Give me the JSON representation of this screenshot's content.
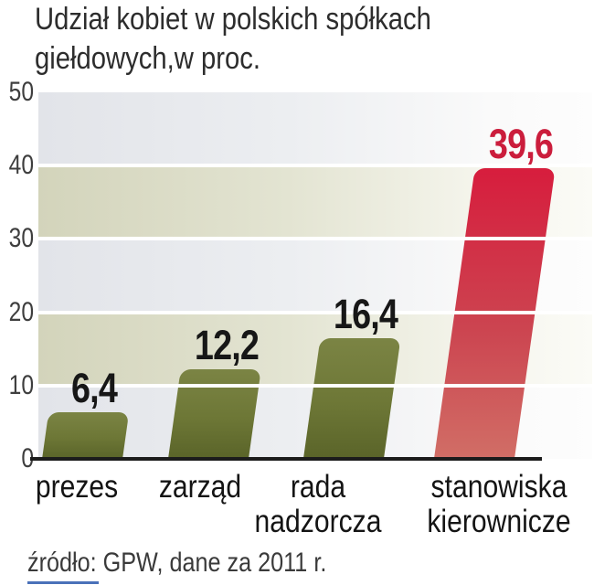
{
  "title_lines": [
    "Udział kobiet w polskich spółkach",
    "giełdowych,w proc."
  ],
  "source": "źródło: GPW, dane za 2011 r.",
  "colors": {
    "band_gray": "#e2e4e9",
    "band_khaki": "#d3d4bb",
    "bar_green_top": "#7b8444",
    "bar_green_bottom": "#5a6429",
    "bar_red_top": "#d71d3d",
    "bar_red_bottom": "#d16e66",
    "value_black": "#171717",
    "value_red": "#cb1d3c",
    "axis_line": "#1c1c1c",
    "bottom_rule_blue": "#4a71b9"
  },
  "chart_data": {
    "type": "bar",
    "title": "Udział kobiet w polskich spółkach giełdowych,w proc.",
    "categories": [
      "prezes",
      "zarząd",
      "rada nadzorcza",
      "stanowiska kierownicze"
    ],
    "category_lines": [
      [
        "prezes"
      ],
      [
        "zarząd"
      ],
      [
        "rada",
        "nadzorcza"
      ],
      [
        "stanowiska",
        "kierownicze"
      ]
    ],
    "values": [
      6.4,
      12.2,
      16.4,
      39.6
    ],
    "value_labels": [
      "6,4",
      "12,2",
      "16,4",
      "39,6"
    ],
    "bar_colors": [
      "green",
      "green",
      "green",
      "red"
    ],
    "xlabel": "",
    "ylabel": "",
    "ylim": [
      0,
      50
    ],
    "yticks": [
      0,
      10,
      20,
      30,
      40,
      50
    ],
    "grid": "horizontal-white-lines",
    "legend": "none",
    "source": "źródło: GPW, dane za 2011 r."
  }
}
